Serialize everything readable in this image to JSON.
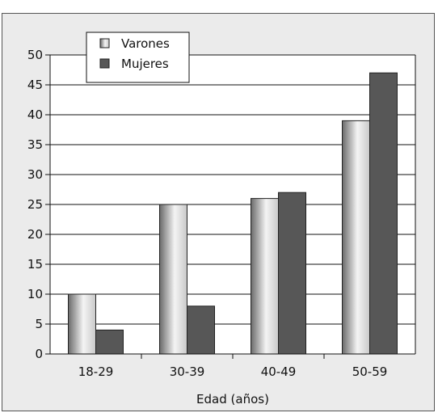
{
  "chart_data": {
    "type": "bar",
    "categories": [
      "18-29",
      "30-39",
      "40-49",
      "50-59"
    ],
    "series": [
      {
        "name": "Varones",
        "values": [
          10,
          25,
          26,
          39
        ],
        "color": "#c8c8c8"
      },
      {
        "name": "Mujeres",
        "values": [
          4,
          8,
          27,
          47
        ],
        "color": "#575757"
      }
    ],
    "xlabel": "Edad (años)",
    "ylabel": "",
    "ylim": [
      0,
      50
    ],
    "yticks": [
      0,
      5,
      10,
      15,
      20,
      25,
      30,
      35,
      40,
      45,
      50
    ],
    "grid": true,
    "legend": "top-left"
  }
}
